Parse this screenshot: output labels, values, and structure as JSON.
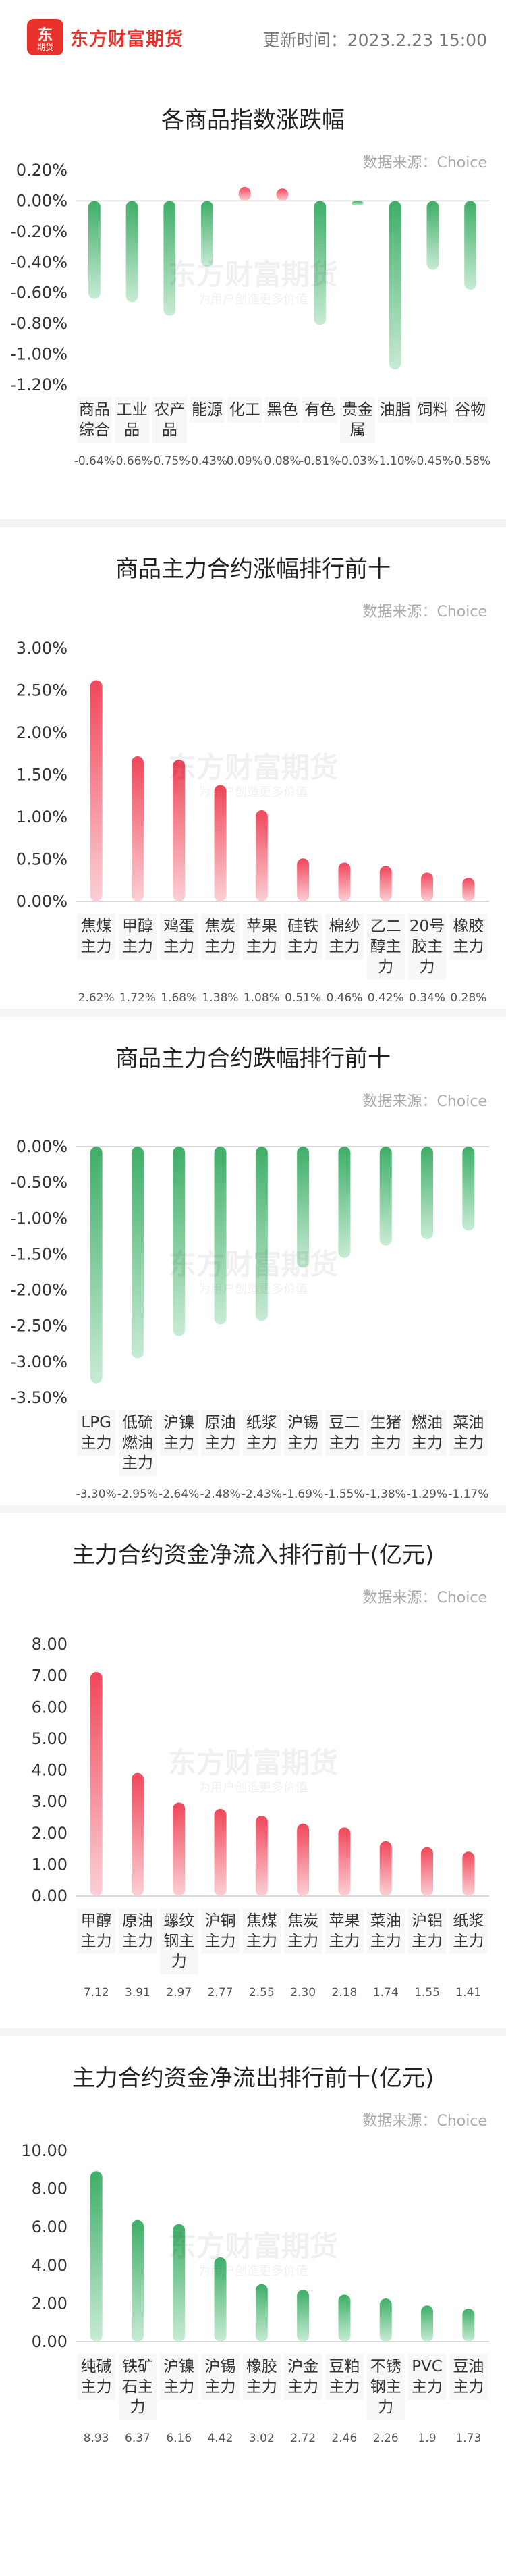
{
  "header": {
    "logo_glyph": "东",
    "logo_sub": "期货",
    "brand": "东方财富期货",
    "update_label": "更新时间：",
    "update_time": "2023.2.23 15:00"
  },
  "watermark": {
    "main": "东方财富期货",
    "sub": "为用户创造更多价值"
  },
  "colors": {
    "up": "#f0475a",
    "down": "#3fae68",
    "axis": "#cccccc",
    "tick": "#333333",
    "value": "#555555"
  },
  "chart_data": [
    {
      "type": "bar",
      "title": "各商品指数涨跌幅",
      "source": "数据来源：Choice",
      "categories": [
        "商品综合",
        "工业品",
        "农产品",
        "能源",
        "化工",
        "黑色",
        "有色",
        "贵金属",
        "油脂",
        "饲料",
        "谷物"
      ],
      "category_lines": [
        [
          "商品",
          "综合"
        ],
        [
          "工业",
          "品"
        ],
        [
          "农产",
          "品"
        ],
        [
          "能源"
        ],
        [
          "化工"
        ],
        [
          "黑色"
        ],
        [
          "有色"
        ],
        [
          "贵金",
          "属"
        ],
        [
          "油脂"
        ],
        [
          "饲料"
        ],
        [
          "谷物"
        ]
      ],
      "values": [
        -0.64,
        -0.66,
        -0.75,
        -0.43,
        0.09,
        0.08,
        -0.81,
        -0.03,
        -1.1,
        -0.45,
        -0.58
      ],
      "value_labels": [
        "-0.64%",
        "-0.66%",
        "-0.75%",
        "-0.43%",
        "0.09%",
        "0.08%",
        "-0.81%",
        "-0.03%",
        "-1.10%",
        "-0.45%",
        "-0.58%"
      ],
      "y_ticks": [
        "0.20%",
        "0.00%",
        "-0.20%",
        "-0.40%",
        "-0.60%",
        "-0.80%",
        "-1.00%",
        "-1.20%"
      ],
      "ylim": [
        -1.2,
        0.2
      ],
      "unit": "%"
    },
    {
      "type": "bar",
      "title": "商品主力合约涨幅排行前十",
      "source": "数据来源：Choice",
      "categories": [
        "焦煤主力",
        "甲醇主力",
        "鸡蛋主力",
        "焦炭主力",
        "苹果主力",
        "硅铁主力",
        "棉纱主力",
        "乙二醇主力",
        "20号胶主力",
        "橡胶主力"
      ],
      "category_lines": [
        [
          "焦煤",
          "主力"
        ],
        [
          "甲醇",
          "主力"
        ],
        [
          "鸡蛋",
          "主力"
        ],
        [
          "焦炭",
          "主力"
        ],
        [
          "苹果",
          "主力"
        ],
        [
          "硅铁",
          "主力"
        ],
        [
          "棉纱",
          "主力"
        ],
        [
          "乙二",
          "醇主",
          "力"
        ],
        [
          "20号",
          "胶主",
          "力"
        ],
        [
          "橡胶",
          "主力"
        ]
      ],
      "values": [
        2.62,
        1.72,
        1.68,
        1.38,
        1.08,
        0.51,
        0.46,
        0.42,
        0.34,
        0.28
      ],
      "value_labels": [
        "2.62%",
        "1.72%",
        "1.68%",
        "1.38%",
        "1.08%",
        "0.51%",
        "0.46%",
        "0.42%",
        "0.34%",
        "0.28%"
      ],
      "y_ticks": [
        "3.00%",
        "2.50%",
        "2.00%",
        "1.50%",
        "1.00%",
        "0.50%",
        "0.00%"
      ],
      "ylim": [
        0,
        3
      ],
      "unit": "%"
    },
    {
      "type": "bar",
      "title": "商品主力合约跌幅排行前十",
      "source": "数据来源：Choice",
      "categories": [
        "LPG主力",
        "低硫燃油主力",
        "沪镍主力",
        "原油主力",
        "纸浆主力",
        "沪锡主力",
        "豆二主力",
        "生猪主力",
        "燃油主力",
        "菜油主力"
      ],
      "category_lines": [
        [
          "LPG",
          "主力"
        ],
        [
          "低硫",
          "燃油",
          "主力"
        ],
        [
          "沪镍",
          "主力"
        ],
        [
          "原油",
          "主力"
        ],
        [
          "纸浆",
          "主力"
        ],
        [
          "沪锡",
          "主力"
        ],
        [
          "豆二",
          "主力"
        ],
        [
          "生猪",
          "主力"
        ],
        [
          "燃油",
          "主力"
        ],
        [
          "菜油",
          "主力"
        ]
      ],
      "values": [
        -3.3,
        -2.95,
        -2.64,
        -2.48,
        -2.43,
        -1.69,
        -1.55,
        -1.38,
        -1.29,
        -1.17
      ],
      "value_labels": [
        "-3.30%",
        "-2.95%",
        "-2.64%",
        "-2.48%",
        "-2.43%",
        "-1.69%",
        "-1.55%",
        "-1.38%",
        "-1.29%",
        "-1.17%"
      ],
      "y_ticks": [
        "0.00%",
        "-0.50%",
        "-1.00%",
        "-1.50%",
        "-2.00%",
        "-2.50%",
        "-3.00%",
        "-3.50%"
      ],
      "ylim": [
        -3.5,
        0
      ],
      "unit": "%"
    },
    {
      "type": "bar",
      "title": "主力合约资金净流入排行前十(亿元)",
      "source": "数据来源：Choice",
      "categories": [
        "甲醇主力",
        "原油主力",
        "螺纹钢主力",
        "沪铜主力",
        "焦煤主力",
        "焦炭主力",
        "苹果主力",
        "菜油主力",
        "沪铝主力",
        "纸浆主力"
      ],
      "category_lines": [
        [
          "甲醇",
          "主力"
        ],
        [
          "原油",
          "主力"
        ],
        [
          "螺纹",
          "钢主",
          "力"
        ],
        [
          "沪铜",
          "主力"
        ],
        [
          "焦煤",
          "主力"
        ],
        [
          "焦炭",
          "主力"
        ],
        [
          "苹果",
          "主力"
        ],
        [
          "菜油",
          "主力"
        ],
        [
          "沪铝",
          "主力"
        ],
        [
          "纸浆",
          "主力"
        ]
      ],
      "values": [
        7.12,
        3.91,
        2.97,
        2.77,
        2.55,
        2.3,
        2.18,
        1.74,
        1.55,
        1.41
      ],
      "value_labels": [
        "7.12",
        "3.91",
        "2.97",
        "2.77",
        "2.55",
        "2.30",
        "2.18",
        "1.74",
        "1.55",
        "1.41"
      ],
      "y_ticks": [
        "8.00",
        "7.00",
        "6.00",
        "5.00",
        "4.00",
        "3.00",
        "2.00",
        "1.00",
        "0.00"
      ],
      "ylim": [
        0,
        8
      ],
      "unit": "亿元"
    },
    {
      "type": "bar",
      "title": "主力合约资金净流出排行前十(亿元)",
      "source": "数据来源：Choice",
      "categories": [
        "纯碱主力",
        "铁矿石主力",
        "沪镍主力",
        "沪锡主力",
        "橡胶主力",
        "沪金主力",
        "豆粕主力",
        "不锈钢主力",
        "PVC主力",
        "豆油主力"
      ],
      "category_lines": [
        [
          "纯碱",
          "主力"
        ],
        [
          "铁矿",
          "石主",
          "力"
        ],
        [
          "沪镍",
          "主力"
        ],
        [
          "沪锡",
          "主力"
        ],
        [
          "橡胶",
          "主力"
        ],
        [
          "沪金",
          "主力"
        ],
        [
          "豆粕",
          "主力"
        ],
        [
          "不锈",
          "钢主",
          "力"
        ],
        [
          "PVC",
          "主力"
        ],
        [
          "豆油",
          "主力"
        ]
      ],
      "values": [
        8.93,
        6.37,
        6.16,
        4.42,
        3.02,
        2.72,
        2.46,
        2.26,
        1.9,
        1.73
      ],
      "value_labels": [
        "8.93",
        "6.37",
        "6.16",
        "4.42",
        "3.02",
        "2.72",
        "2.46",
        "2.26",
        "1.9",
        "1.73"
      ],
      "y_ticks": [
        "10.00",
        "8.00",
        "6.00",
        "4.00",
        "2.00",
        "0.00"
      ],
      "ylim": [
        0,
        10
      ],
      "unit": "亿元"
    }
  ]
}
